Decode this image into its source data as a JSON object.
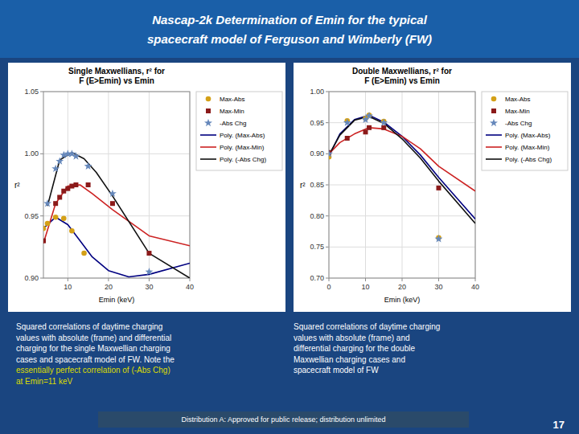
{
  "title": [
    "Nascap-2k Determination of Emin for the typical",
    "spacecraft model of Ferguson and Wimberly (FW)"
  ],
  "chart_data": [
    {
      "type": "scatter",
      "title": "Single Maxwellians, r² for\nF (E>Emin) vs Emin",
      "xlabel": "Emin (keV)",
      "ylabel": "r²",
      "xlim": [
        4,
        40
      ],
      "ylim": [
        0.9,
        1.05
      ],
      "xticks": [
        10,
        20,
        30,
        40
      ],
      "yticks": [
        {
          "value": 0.9,
          "label": "0.90"
        },
        0.95,
        {
          "value": 1.0,
          "label": "1.00"
        },
        1.05
      ],
      "grid": true,
      "legend": "right",
      "series": [
        {
          "name": "Max-Abs",
          "type": "scatter",
          "marker": "circle",
          "color": "#d4a017",
          "x": [
            4,
            5,
            7,
            9,
            11,
            14
          ],
          "values": [
            0.94,
            0.944,
            0.949,
            0.948,
            0.938,
            0.92
          ]
        },
        {
          "name": "Max-Min",
          "type": "scatter",
          "marker": "square",
          "color": "#8B1A1A",
          "x": [
            4,
            7,
            8,
            9,
            10,
            11,
            12,
            15,
            21,
            30
          ],
          "values": [
            0.93,
            0.96,
            0.965,
            0.97,
            0.972,
            0.974,
            0.975,
            0.975,
            0.96,
            0.92
          ]
        },
        {
          "name": "-Abs Chg",
          "type": "scatter",
          "marker": "star",
          "color": "#6688bb",
          "x": [
            5,
            7,
            8,
            9,
            10,
            11,
            12,
            15,
            21,
            30
          ],
          "values": [
            0.96,
            0.988,
            0.994,
            0.999,
            1.0,
            1.0,
            0.998,
            0.99,
            0.968,
            0.905
          ]
        },
        {
          "name": "Poly. (Max-Abs)",
          "type": "line",
          "line_style": "solid",
          "color": "#000080",
          "x": [
            4,
            7,
            10,
            13,
            16,
            20,
            25,
            30,
            40
          ],
          "values": [
            0.94,
            0.949,
            0.943,
            0.93,
            0.917,
            0.906,
            0.901,
            0.903,
            0.912
          ]
        },
        {
          "name": "Poly. (Max-Min)",
          "type": "line",
          "line_style": "solid",
          "color": "#cc2222",
          "x": [
            4,
            7,
            10,
            13,
            16,
            21,
            30,
            40
          ],
          "values": [
            0.928,
            0.96,
            0.974,
            0.975,
            0.968,
            0.955,
            0.934,
            0.926
          ]
        },
        {
          "name": "Poly. (-Abs Chg)",
          "type": "line",
          "line_style": "solid",
          "color": "#111111",
          "x": [
            5,
            8,
            11,
            14,
            17,
            21,
            30,
            40
          ],
          "values": [
            0.958,
            0.995,
            1.001,
            0.996,
            0.985,
            0.966,
            0.92,
            0.9
          ]
        }
      ]
    },
    {
      "type": "scatter",
      "title": "Double Maxwellians, r² for\nF (E>Emin) vs Emin",
      "xlabel": "Emin (keV)",
      "ylabel": "r²",
      "xlim": [
        0,
        40
      ],
      "ylim": [
        0.7,
        1.0
      ],
      "xticks": [
        0,
        10,
        20,
        30,
        40
      ],
      "yticks": [
        {
          "value": 0.7,
          "label": "0.70"
        },
        0.75,
        {
          "value": 0.8,
          "label": "0.80"
        },
        0.85,
        {
          "value": 0.9,
          "label": "0.90"
        },
        0.95,
        {
          "value": 1.0,
          "label": "1.00"
        }
      ],
      "grid": true,
      "legend": "right",
      "series": [
        {
          "name": "Max-Abs",
          "type": "scatter",
          "marker": "circle",
          "color": "#d4a017",
          "x": [
            0,
            5,
            10,
            11,
            15,
            30
          ],
          "values": [
            0.895,
            0.953,
            0.957,
            0.962,
            0.952,
            0.765
          ]
        },
        {
          "name": "Max-Min",
          "type": "scatter",
          "marker": "square",
          "color": "#8B1A1A",
          "x": [
            0,
            5,
            10,
            11,
            15,
            30
          ],
          "values": [
            0.902,
            0.925,
            0.935,
            0.942,
            0.942,
            0.845
          ]
        },
        {
          "name": "-Abs Chg",
          "type": "scatter",
          "marker": "star",
          "color": "#6688bb",
          "x": [
            0,
            5,
            10,
            11,
            15,
            30
          ],
          "values": [
            0.9,
            0.95,
            0.955,
            0.961,
            0.95,
            0.763
          ]
        },
        {
          "name": "Poly. (Max-Abs)",
          "type": "line",
          "line_style": "solid",
          "color": "#000080",
          "x": [
            0,
            3,
            7,
            11,
            15,
            20,
            25,
            30,
            40
          ],
          "values": [
            0.896,
            0.932,
            0.955,
            0.962,
            0.951,
            0.928,
            0.898,
            0.862,
            0.795
          ]
        },
        {
          "name": "Poly. (Max-Min)",
          "type": "line",
          "line_style": "solid",
          "color": "#cc2222",
          "x": [
            0,
            3,
            7,
            11,
            15,
            20,
            25,
            30,
            40
          ],
          "values": [
            0.9,
            0.918,
            0.932,
            0.942,
            0.94,
            0.928,
            0.908,
            0.88,
            0.84
          ]
        },
        {
          "name": "Poly. (-Abs Chg)",
          "type": "line",
          "line_style": "solid",
          "color": "#111111",
          "x": [
            0,
            3,
            7,
            11,
            15,
            20,
            25,
            30,
            40
          ],
          "values": [
            0.898,
            0.93,
            0.954,
            0.96,
            0.949,
            0.924,
            0.893,
            0.856,
            0.788
          ]
        }
      ]
    }
  ],
  "annotations": [
    [
      {
        "text": "Squared correlations of daytime charging\nvalues with absolute (frame) and differential\ncharging for the single Maxwellian charging\ncases and spacecraft model of FW.  Note the",
        "color": "#ffffff"
      },
      {
        "text": "essentially perfect correlation of (-Abs Chg)\nat Emin=11 keV",
        "color": "#dddd00"
      }
    ],
    [
      {
        "text": "Squared correlations of daytime charging\nvalues with absolute (frame) and\ndifferential charging for the double\nMaxwellian charging cases and\nspacecraft model of FW",
        "color": "#ffffff"
      }
    ]
  ],
  "footer": "Distribution A: Approved for public release; distribution unlimited",
  "page_number": "17"
}
